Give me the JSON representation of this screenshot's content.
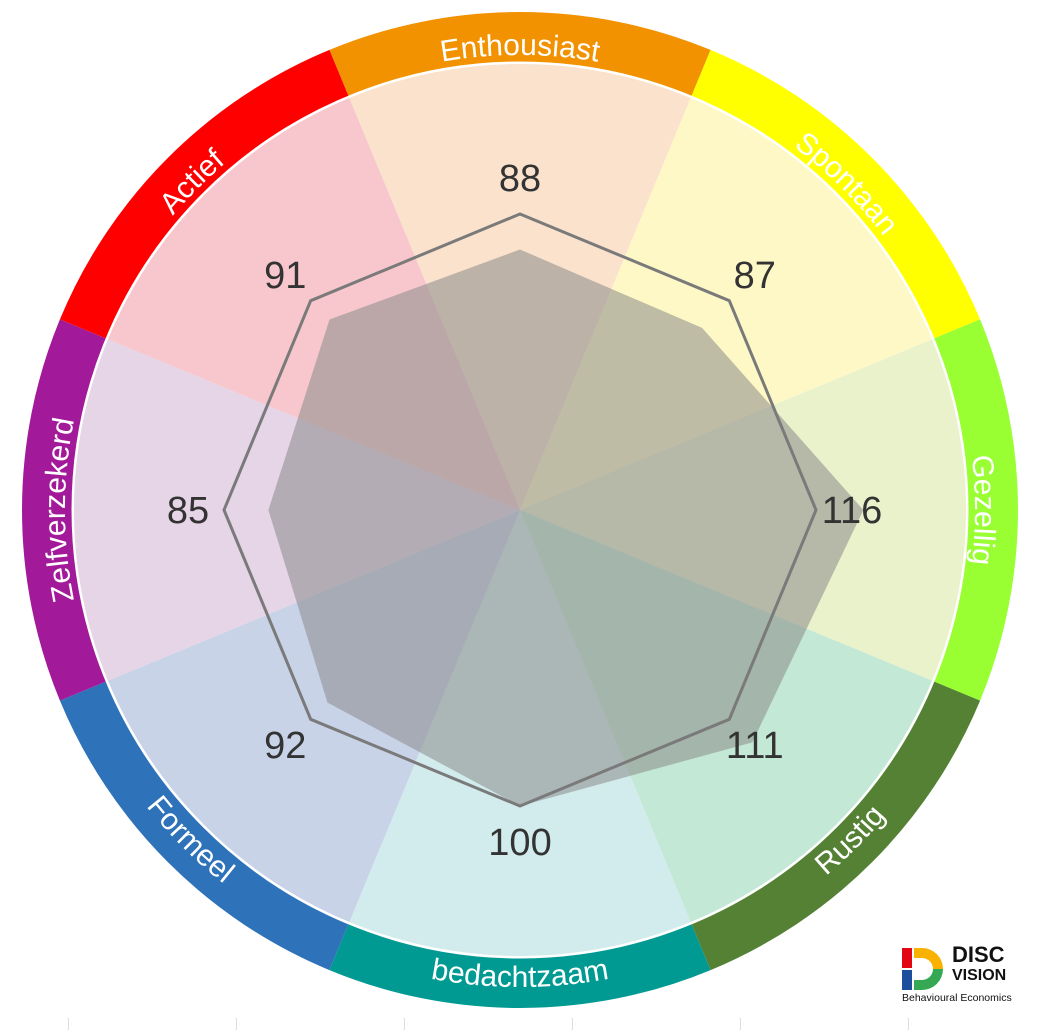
{
  "chart_data": {
    "type": "radar",
    "axes": [
      "Enthousiast",
      "Spontaan",
      "Gezellig",
      "Rustig",
      "bedachtzaam",
      "Formeel",
      "Zelfverzekerd",
      "Actief"
    ],
    "values": [
      88,
      87,
      116,
      111,
      100,
      92,
      85,
      91
    ],
    "reference_value": 100,
    "sector_colors": [
      "#F39200",
      "#FFFF00",
      "#99FF33",
      "#558135",
      "#009A93",
      "#2E72B9",
      "#A21A9A",
      "#FF0000"
    ],
    "sector_fills": [
      "#FBE2CC",
      "#FEF8C6",
      "#EAF2CB",
      "#C4E8D6",
      "#D2EBEC",
      "#C8D3E8",
      "#E6D4E7",
      "#F7C7CD"
    ],
    "label_colors": [
      "#ffffff",
      "#808080",
      "#ffffff",
      "#ffffff",
      "#ffffff",
      "#ffffff",
      "#ffffff",
      "#ffffff"
    ]
  },
  "logo": {
    "line1": "DISC",
    "line2": "VISION",
    "line3": "Behavioural Economics"
  }
}
